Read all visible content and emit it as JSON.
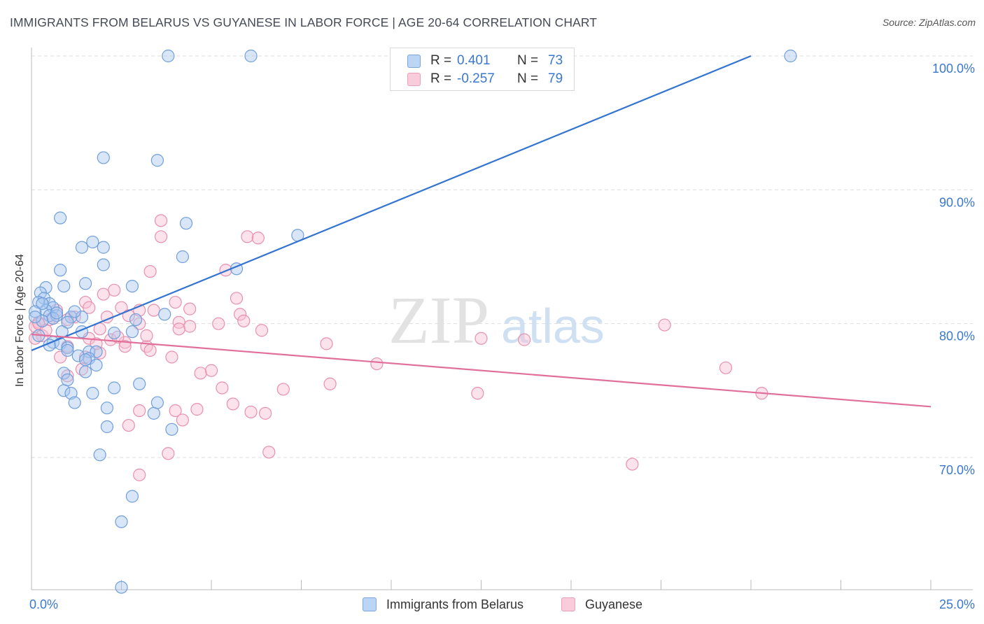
{
  "title": "IMMIGRANTS FROM BELARUS VS GUYANESE IN LABOR FORCE | AGE 20-64 CORRELATION CHART",
  "source": "Source: ZipAtlas.com",
  "watermark": {
    "zip": "ZIP",
    "atlas": "atlas"
  },
  "colors": {
    "blue_fill": "#a8c8f0",
    "blue_stroke": "#6f9fdc",
    "blue_line": "#3374d0",
    "pink_fill": "#f8bfd2",
    "pink_stroke": "#e890ae",
    "pink_line": "#e0709a",
    "tick_label": "#3a78d0",
    "grid": "#dddddd"
  },
  "legend": {
    "rows": [
      {
        "r_label": "R =",
        "r_value": "0.401",
        "n_label": "N =",
        "n_value": "73"
      },
      {
        "r_label": "R =",
        "r_value": "-0.257",
        "n_label": "N =",
        "n_value": "79"
      }
    ]
  },
  "bottom_legend": {
    "series1": "Immigrants from Belarus",
    "series2": "Guyanese"
  },
  "chart_data": {
    "type": "scatter",
    "title": "IMMIGRANTS FROM BELARUS VS GUYANESE IN LABOR FORCE | AGE 20-64 CORRELATION CHART",
    "xlabel": "",
    "ylabel": "In Labor Force | Age 20-64",
    "xlim": [
      0,
      25
    ],
    "ylim": [
      60,
      100.8
    ],
    "x_tick_labels": [
      "0.0%",
      "25.0%"
    ],
    "y_ticks": [
      70,
      80,
      90,
      100
    ],
    "y_tick_labels": [
      "70.0%",
      "80.0%",
      "90.0%",
      "100.0%"
    ],
    "series": [
      {
        "name": "Immigrants from Belarus",
        "color": "#6f9fdc",
        "trend": {
          "x": [
            0,
            20
          ],
          "y": [
            78.0,
            100.0
          ]
        },
        "points": [
          [
            3.8,
            100
          ],
          [
            6.1,
            100
          ],
          [
            21.1,
            100
          ],
          [
            2.0,
            92.4
          ],
          [
            3.5,
            92.2
          ],
          [
            0.8,
            87.9
          ],
          [
            4.3,
            87.5
          ],
          [
            7.4,
            86.6
          ],
          [
            1.4,
            85.7
          ],
          [
            2.0,
            85.7
          ],
          [
            1.7,
            86.1
          ],
          [
            4.2,
            85.0
          ],
          [
            2.0,
            84.4
          ],
          [
            5.7,
            84.1
          ],
          [
            0.8,
            84.0
          ],
          [
            1.5,
            83.0
          ],
          [
            0.9,
            82.8
          ],
          [
            0.4,
            82.7
          ],
          [
            2.8,
            82.8
          ],
          [
            0.25,
            82.3
          ],
          [
            0.35,
            81.9
          ],
          [
            0.5,
            81.5
          ],
          [
            0.2,
            81.6
          ],
          [
            0.6,
            81.2
          ],
          [
            0.4,
            81.0
          ],
          [
            0.1,
            80.9
          ],
          [
            0.5,
            80.6
          ],
          [
            0.7,
            80.6
          ],
          [
            1.1,
            80.5
          ],
          [
            1.4,
            80.5
          ],
          [
            0.3,
            80.2
          ],
          [
            0.6,
            80.4
          ],
          [
            0.1,
            80.5
          ],
          [
            3.7,
            80.7
          ],
          [
            2.9,
            80.3
          ],
          [
            1.0,
            80.1
          ],
          [
            1.4,
            79.4
          ],
          [
            0.85,
            79.4
          ],
          [
            2.3,
            79.3
          ],
          [
            0.2,
            79.1
          ],
          [
            0.6,
            78.6
          ],
          [
            0.8,
            78.5
          ],
          [
            0.5,
            78.4
          ],
          [
            1.0,
            78.2
          ],
          [
            1.0,
            78.0
          ],
          [
            1.6,
            77.9
          ],
          [
            1.8,
            77.9
          ],
          [
            1.3,
            77.6
          ],
          [
            1.6,
            77.4
          ],
          [
            1.5,
            77.3
          ],
          [
            1.8,
            76.9
          ],
          [
            1.5,
            76.4
          ],
          [
            0.9,
            76.3
          ],
          [
            1.0,
            75.8
          ],
          [
            0.9,
            75.0
          ],
          [
            1.1,
            74.8
          ],
          [
            1.7,
            74.8
          ],
          [
            2.3,
            75.2
          ],
          [
            3.0,
            75.5
          ],
          [
            1.2,
            74.1
          ],
          [
            2.1,
            73.7
          ],
          [
            3.4,
            73.3
          ],
          [
            3.5,
            74.1
          ],
          [
            2.1,
            72.3
          ],
          [
            3.9,
            72.1
          ],
          [
            1.9,
            70.2
          ],
          [
            2.8,
            67.1
          ],
          [
            2.5,
            65.2
          ],
          [
            2.5,
            60.3
          ],
          [
            2.8,
            79.4
          ],
          [
            1.2,
            80.9
          ],
          [
            0.7,
            80.8
          ],
          [
            0.3,
            81.5
          ]
        ]
      },
      {
        "name": "Guyanese",
        "color": "#e890ae",
        "trend": {
          "x": [
            0,
            25
          ],
          "y": [
            79.2,
            73.8
          ]
        },
        "points": [
          [
            3.6,
            87.7
          ],
          [
            3.6,
            86.5
          ],
          [
            6.0,
            86.5
          ],
          [
            6.3,
            86.4
          ],
          [
            5.4,
            84.0
          ],
          [
            3.3,
            83.9
          ],
          [
            2.3,
            82.5
          ],
          [
            2.0,
            82.2
          ],
          [
            5.7,
            81.9
          ],
          [
            4.0,
            81.6
          ],
          [
            1.5,
            81.6
          ],
          [
            1.6,
            81.2
          ],
          [
            2.5,
            81.2
          ],
          [
            3.0,
            81.0
          ],
          [
            4.4,
            81.1
          ],
          [
            3.4,
            81.0
          ],
          [
            5.8,
            80.7
          ],
          [
            2.1,
            80.5
          ],
          [
            1.2,
            80.5
          ],
          [
            2.7,
            80.6
          ],
          [
            0.6,
            80.4
          ],
          [
            0.2,
            80.1
          ],
          [
            0.5,
            80.3
          ],
          [
            4.1,
            80.1
          ],
          [
            3.0,
            80.0
          ],
          [
            5.2,
            80.0
          ],
          [
            17.6,
            79.9
          ],
          [
            0.1,
            79.8
          ],
          [
            4.4,
            79.8
          ],
          [
            4.1,
            79.6
          ],
          [
            1.9,
            79.6
          ],
          [
            6.4,
            79.5
          ],
          [
            0.3,
            79.1
          ],
          [
            0.1,
            78.9
          ],
          [
            2.2,
            78.8
          ],
          [
            1.6,
            78.9
          ],
          [
            8.2,
            78.5
          ],
          [
            2.6,
            78.6
          ],
          [
            12.5,
            78.9
          ],
          [
            13.7,
            78.8
          ],
          [
            3.2,
            78.3
          ],
          [
            2.6,
            78.3
          ],
          [
            1.0,
            78.3
          ],
          [
            3.3,
            78.0
          ],
          [
            1.9,
            77.8
          ],
          [
            1.5,
            77.5
          ],
          [
            0.8,
            77.5
          ],
          [
            3.9,
            77.5
          ],
          [
            9.6,
            77.0
          ],
          [
            1.4,
            76.6
          ],
          [
            4.7,
            76.3
          ],
          [
            5.0,
            76.5
          ],
          [
            1.0,
            76.1
          ],
          [
            19.3,
            76.7
          ],
          [
            8.3,
            75.5
          ],
          [
            7.0,
            75.1
          ],
          [
            5.3,
            75.2
          ],
          [
            12.4,
            74.8
          ],
          [
            20.3,
            74.8
          ],
          [
            5.6,
            74.0
          ],
          [
            4.6,
            73.6
          ],
          [
            3.0,
            73.5
          ],
          [
            4.0,
            73.5
          ],
          [
            6.1,
            73.4
          ],
          [
            6.5,
            73.3
          ],
          [
            4.2,
            72.8
          ],
          [
            2.7,
            72.4
          ],
          [
            3.8,
            70.3
          ],
          [
            6.6,
            70.4
          ],
          [
            16.7,
            69.5
          ],
          [
            3.0,
            68.7
          ],
          [
            0.2,
            80.0
          ],
          [
            0.4,
            79.5
          ],
          [
            1.0,
            80.3
          ],
          [
            2.4,
            79.0
          ],
          [
            1.8,
            78.5
          ],
          [
            5.9,
            80.2
          ],
          [
            3.2,
            79.1
          ],
          [
            0.7,
            81.0
          ]
        ]
      }
    ]
  }
}
